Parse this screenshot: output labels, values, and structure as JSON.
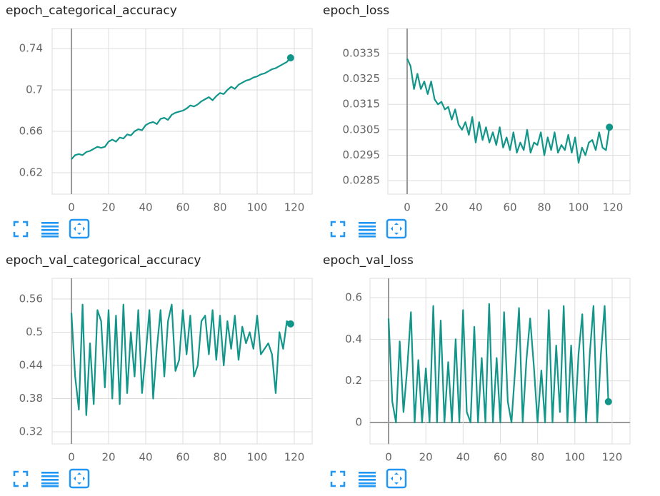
{
  "chart_data": [
    {
      "type": "line",
      "title": "epoch_categorical_accuracy",
      "color": "#12968a",
      "grid": true,
      "xlim": [
        -10.4,
        129.6
      ],
      "ylim": [
        0.5993,
        0.7593
      ],
      "xticks": [
        0,
        20,
        40,
        60,
        80,
        100,
        120
      ],
      "yticks": [
        0.62,
        0.66,
        0.7,
        0.74
      ],
      "x": [
        0,
        2,
        4,
        6,
        8,
        10,
        12,
        14,
        16,
        18,
        20,
        22,
        24,
        26,
        28,
        30,
        32,
        34,
        36,
        38,
        40,
        42,
        44,
        46,
        48,
        50,
        52,
        54,
        56,
        58,
        60,
        62,
        64,
        66,
        68,
        70,
        72,
        74,
        76,
        78,
        80,
        82,
        84,
        86,
        88,
        90,
        92,
        94,
        96,
        98,
        100,
        102,
        104,
        106,
        108,
        110,
        112,
        114,
        116,
        118
      ],
      "values": [
        0.633,
        0.637,
        0.638,
        0.637,
        0.64,
        0.641,
        0.643,
        0.645,
        0.644,
        0.645,
        0.65,
        0.652,
        0.65,
        0.654,
        0.653,
        0.657,
        0.656,
        0.66,
        0.662,
        0.661,
        0.666,
        0.668,
        0.669,
        0.667,
        0.672,
        0.673,
        0.671,
        0.676,
        0.678,
        0.679,
        0.68,
        0.682,
        0.685,
        0.684,
        0.686,
        0.689,
        0.691,
        0.693,
        0.69,
        0.694,
        0.697,
        0.696,
        0.7,
        0.703,
        0.701,
        0.705,
        0.707,
        0.709,
        0.71,
        0.712,
        0.713,
        0.715,
        0.716,
        0.718,
        0.72,
        0.721,
        0.723,
        0.725,
        0.727,
        0.731
      ]
    },
    {
      "type": "line",
      "title": "epoch_loss",
      "color": "#12968a",
      "grid": true,
      "xlim": [
        -11.25,
        130
      ],
      "ylim": [
        0.02797,
        0.03448
      ],
      "xticks": [
        0,
        20,
        40,
        60,
        80,
        100,
        120
      ],
      "yticks": [
        0.0285,
        0.0295,
        0.0305,
        0.0315,
        0.0325,
        0.0335
      ],
      "x": [
        0,
        2,
        4,
        6,
        8,
        10,
        12,
        14,
        16,
        18,
        20,
        22,
        24,
        26,
        28,
        30,
        32,
        34,
        36,
        38,
        40,
        42,
        44,
        46,
        48,
        50,
        52,
        54,
        56,
        58,
        60,
        62,
        64,
        66,
        68,
        70,
        72,
        74,
        76,
        78,
        80,
        82,
        84,
        86,
        88,
        90,
        92,
        94,
        96,
        98,
        100,
        102,
        104,
        106,
        108,
        110,
        112,
        114,
        116,
        118
      ],
      "values": [
        0.0333,
        0.033,
        0.0321,
        0.0327,
        0.0321,
        0.0324,
        0.0319,
        0.0324,
        0.0317,
        0.0315,
        0.0316,
        0.0313,
        0.0314,
        0.0309,
        0.0313,
        0.0307,
        0.0305,
        0.0308,
        0.0303,
        0.031,
        0.03,
        0.0308,
        0.0301,
        0.0306,
        0.03,
        0.0304,
        0.0299,
        0.0306,
        0.0298,
        0.0302,
        0.0297,
        0.0304,
        0.0296,
        0.03,
        0.0297,
        0.0305,
        0.0296,
        0.03,
        0.0299,
        0.0304,
        0.0295,
        0.0302,
        0.0297,
        0.0304,
        0.0296,
        0.0299,
        0.0297,
        0.0303,
        0.0296,
        0.0302,
        0.0292,
        0.0298,
        0.0295,
        0.03,
        0.0301,
        0.0297,
        0.0304,
        0.0298,
        0.0297,
        0.0306
      ]
    },
    {
      "type": "line",
      "title": "epoch_val_categorical_accuracy",
      "color": "#12968a",
      "grid": true,
      "xlim": [
        -10.4,
        129.6
      ],
      "ylim": [
        0.2981,
        0.5974
      ],
      "xticks": [
        0,
        20,
        40,
        60,
        80,
        100,
        120
      ],
      "yticks": [
        0.32,
        0.38,
        0.44,
        0.5,
        0.56
      ],
      "x": [
        0,
        2,
        4,
        6,
        8,
        10,
        12,
        14,
        16,
        18,
        20,
        22,
        24,
        26,
        28,
        30,
        32,
        34,
        36,
        38,
        40,
        42,
        44,
        46,
        48,
        50,
        52,
        54,
        56,
        58,
        60,
        62,
        64,
        66,
        68,
        70,
        72,
        74,
        76,
        78,
        80,
        82,
        84,
        86,
        88,
        90,
        92,
        94,
        96,
        98,
        100,
        102,
        104,
        106,
        108,
        110,
        112,
        114,
        116,
        118
      ],
      "values": [
        0.535,
        0.42,
        0.36,
        0.55,
        0.35,
        0.48,
        0.37,
        0.54,
        0.52,
        0.4,
        0.54,
        0.38,
        0.53,
        0.37,
        0.55,
        0.39,
        0.5,
        0.42,
        0.54,
        0.39,
        0.46,
        0.54,
        0.38,
        0.47,
        0.54,
        0.42,
        0.52,
        0.55,
        0.43,
        0.45,
        0.54,
        0.46,
        0.53,
        0.42,
        0.44,
        0.52,
        0.53,
        0.46,
        0.54,
        0.45,
        0.53,
        0.44,
        0.52,
        0.47,
        0.53,
        0.45,
        0.51,
        0.48,
        0.5,
        0.47,
        0.53,
        0.46,
        0.47,
        0.48,
        0.46,
        0.39,
        0.5,
        0.47,
        0.52,
        0.515
      ]
    },
    {
      "type": "line",
      "title": "epoch_val_loss",
      "color": "#12968a",
      "grid": true,
      "xlim": [
        -9.97,
        129.6
      ],
      "ylim": [
        -0.1029,
        0.6926
      ],
      "xticks": [
        0,
        20,
        40,
        60,
        80,
        100,
        120
      ],
      "yticks": [
        0,
        0.2,
        0.4,
        0.6
      ],
      "x": [
        0,
        2,
        4,
        6,
        8,
        10,
        12,
        14,
        16,
        18,
        20,
        22,
        24,
        26,
        28,
        30,
        32,
        34,
        36,
        38,
        40,
        42,
        44,
        46,
        48,
        50,
        52,
        54,
        56,
        58,
        60,
        62,
        64,
        66,
        68,
        70,
        72,
        74,
        76,
        78,
        80,
        82,
        84,
        86,
        88,
        90,
        92,
        94,
        96,
        98,
        100,
        102,
        104,
        106,
        108,
        110,
        112,
        114,
        116,
        118
      ],
      "values": [
        0.5,
        0.1,
        0,
        0.39,
        0.05,
        0.26,
        0.53,
        0,
        0.3,
        0,
        0.26,
        0,
        0.56,
        0,
        0.49,
        0,
        0.29,
        0,
        0.4,
        0,
        0.54,
        0.05,
        0,
        0.46,
        0,
        0.31,
        0,
        0.57,
        0,
        0.31,
        0,
        0.53,
        0.1,
        0,
        0.26,
        0.55,
        0,
        0.3,
        0.5,
        0.27,
        0,
        0.25,
        0,
        0.54,
        0,
        0.37,
        0.05,
        0.56,
        0,
        0.37,
        0,
        0.33,
        0.52,
        0,
        0.33,
        0.56,
        0,
        0.33,
        0.56,
        0.1
      ]
    }
  ]
}
